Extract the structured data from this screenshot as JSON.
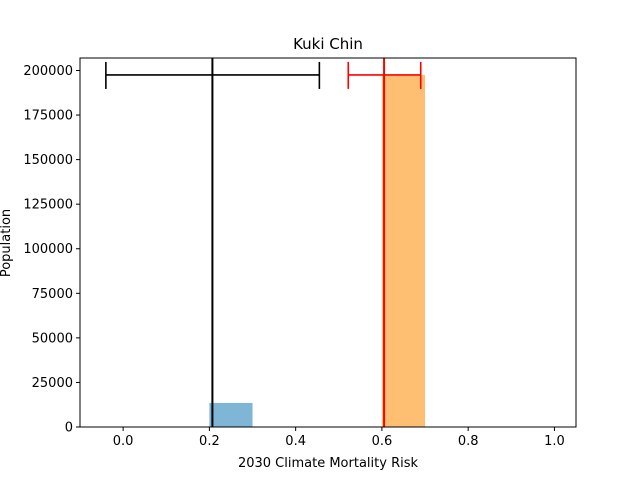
{
  "chart_data": {
    "type": "bar",
    "title": "Kuki Chin",
    "xlabel": "2030 Climate Mortality Risk",
    "ylabel": "Population",
    "xlim": [
      -0.1,
      1.05
    ],
    "ylim": [
      0,
      207000
    ],
    "grid": false,
    "x_ticks": [
      {
        "value": 0.0,
        "label": "0.0"
      },
      {
        "value": 0.2,
        "label": "0.2"
      },
      {
        "value": 0.4,
        "label": "0.4"
      },
      {
        "value": 0.6,
        "label": "0.6"
      },
      {
        "value": 0.8,
        "label": "0.8"
      },
      {
        "value": 1.0,
        "label": "1.0"
      }
    ],
    "y_ticks": [
      {
        "value": 0,
        "label": "0"
      },
      {
        "value": 25000,
        "label": "25000"
      },
      {
        "value": 50000,
        "label": "50000"
      },
      {
        "value": 75000,
        "label": "75000"
      },
      {
        "value": 100000,
        "label": "100000"
      },
      {
        "value": 125000,
        "label": "125000"
      },
      {
        "value": 150000,
        "label": "150000"
      },
      {
        "value": 175000,
        "label": "175000"
      },
      {
        "value": 200000,
        "label": "200000"
      }
    ],
    "bars": [
      {
        "x0": 0.2,
        "x1": 0.3,
        "value": 13500,
        "color": "#7fb6d6"
      },
      {
        "x0": 0.6,
        "x1": 0.7,
        "value": 197500,
        "color": "#ffbf73"
      }
    ],
    "markers": [
      {
        "x": 0.207,
        "xerr_low": -0.04,
        "xerr_high": 0.455,
        "y": 197500,
        "color": "#000000"
      },
      {
        "x": 0.605,
        "xerr_low": 0.522,
        "xerr_high": 0.69,
        "y": 197500,
        "color": "#ff0000"
      }
    ]
  }
}
